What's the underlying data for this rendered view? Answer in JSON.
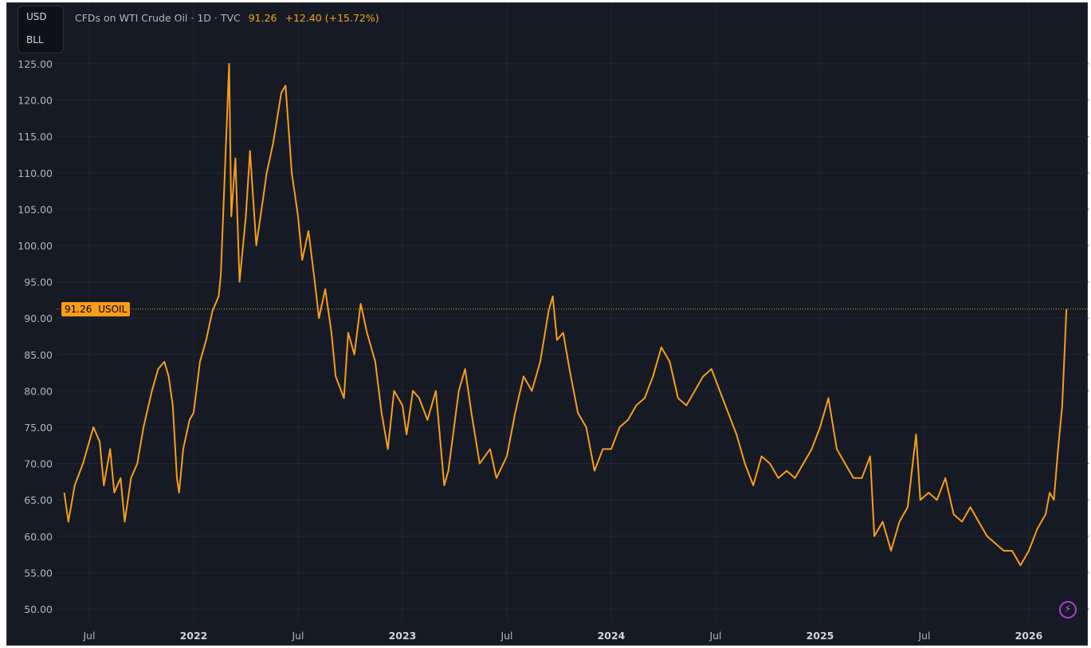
{
  "header": {
    "units": [
      "USD",
      "BLL"
    ],
    "title": "CFDs on WTI Crude Oil · 1D · TVC",
    "last_price": "91.26",
    "change": "+12.40 (+15.72%)"
  },
  "price_tag": {
    "value": "91.26",
    "symbol": "USOIL"
  },
  "icons": {
    "bolt": "lightning-icon"
  },
  "colors": {
    "background": "#161a25",
    "line": "#f89d1b",
    "grid": "#232733",
    "text": "#b2b5be"
  },
  "chart_data": {
    "type": "line",
    "title": "CFDs on WTI Crude Oil · 1D · TVC",
    "xlabel": "",
    "ylabel": "USD",
    "ylim": [
      50,
      125
    ],
    "xlim": [
      2021.35,
      2026.2
    ],
    "y_ticks": [
      "125.00",
      "120.00",
      "115.00",
      "110.00",
      "105.00",
      "100.00",
      "95.00",
      "90.00",
      "85.00",
      "80.00",
      "75.00",
      "70.00",
      "65.00",
      "60.00",
      "55.00",
      "50.00"
    ],
    "x_ticks": [
      {
        "t": 2021.5,
        "label": "Jul"
      },
      {
        "t": 2022.0,
        "label": "2022"
      },
      {
        "t": 2022.5,
        "label": "Jul"
      },
      {
        "t": 2023.0,
        "label": "2023"
      },
      {
        "t": 2023.5,
        "label": "Jul"
      },
      {
        "t": 2024.0,
        "label": "2024"
      },
      {
        "t": 2024.5,
        "label": "Jul"
      },
      {
        "t": 2025.0,
        "label": "2025"
      },
      {
        "t": 2025.5,
        "label": "Jul"
      },
      {
        "t": 2026.0,
        "label": "2026"
      }
    ],
    "grid": true,
    "series": [
      {
        "name": "USOIL",
        "points": [
          [
            2021.38,
            66
          ],
          [
            2021.4,
            62
          ],
          [
            2021.43,
            67
          ],
          [
            2021.47,
            70
          ],
          [
            2021.5,
            73
          ],
          [
            2021.52,
            75
          ],
          [
            2021.55,
            73
          ],
          [
            2021.57,
            67
          ],
          [
            2021.6,
            72
          ],
          [
            2021.62,
            66
          ],
          [
            2021.65,
            68
          ],
          [
            2021.67,
            62
          ],
          [
            2021.7,
            68
          ],
          [
            2021.73,
            70
          ],
          [
            2021.76,
            75
          ],
          [
            2021.8,
            80
          ],
          [
            2021.83,
            83
          ],
          [
            2021.86,
            84
          ],
          [
            2021.88,
            82
          ],
          [
            2021.9,
            78
          ],
          [
            2021.92,
            68
          ],
          [
            2021.93,
            66
          ],
          [
            2021.95,
            72
          ],
          [
            2021.98,
            76
          ],
          [
            2022.0,
            77
          ],
          [
            2022.03,
            84
          ],
          [
            2022.06,
            87
          ],
          [
            2022.09,
            91
          ],
          [
            2022.12,
            93
          ],
          [
            2022.13,
            96
          ],
          [
            2022.17,
            125
          ],
          [
            2022.18,
            104
          ],
          [
            2022.2,
            112
          ],
          [
            2022.22,
            95
          ],
          [
            2022.25,
            104
          ],
          [
            2022.27,
            113
          ],
          [
            2022.3,
            100
          ],
          [
            2022.33,
            106
          ],
          [
            2022.35,
            110
          ],
          [
            2022.38,
            114
          ],
          [
            2022.42,
            121
          ],
          [
            2022.44,
            122
          ],
          [
            2022.47,
            110
          ],
          [
            2022.5,
            104
          ],
          [
            2022.52,
            98
          ],
          [
            2022.55,
            102
          ],
          [
            2022.58,
            95
          ],
          [
            2022.6,
            90
          ],
          [
            2022.63,
            94
          ],
          [
            2022.66,
            88
          ],
          [
            2022.68,
            82
          ],
          [
            2022.72,
            79
          ],
          [
            2022.74,
            88
          ],
          [
            2022.77,
            85
          ],
          [
            2022.8,
            92
          ],
          [
            2022.83,
            88
          ],
          [
            2022.87,
            84
          ],
          [
            2022.9,
            77
          ],
          [
            2022.93,
            72
          ],
          [
            2022.96,
            80
          ],
          [
            2023.0,
            78
          ],
          [
            2023.02,
            74
          ],
          [
            2023.05,
            80
          ],
          [
            2023.08,
            79
          ],
          [
            2023.12,
            76
          ],
          [
            2023.16,
            80
          ],
          [
            2023.2,
            67
          ],
          [
            2023.22,
            69
          ],
          [
            2023.27,
            80
          ],
          [
            2023.3,
            83
          ],
          [
            2023.33,
            77
          ],
          [
            2023.37,
            70
          ],
          [
            2023.42,
            72
          ],
          [
            2023.45,
            68
          ],
          [
            2023.5,
            71
          ],
          [
            2023.54,
            77
          ],
          [
            2023.58,
            82
          ],
          [
            2023.62,
            80
          ],
          [
            2023.66,
            84
          ],
          [
            2023.7,
            91
          ],
          [
            2023.72,
            93
          ],
          [
            2023.74,
            87
          ],
          [
            2023.77,
            88
          ],
          [
            2023.8,
            83
          ],
          [
            2023.84,
            77
          ],
          [
            2023.88,
            75
          ],
          [
            2023.92,
            69
          ],
          [
            2023.96,
            72
          ],
          [
            2024.0,
            72
          ],
          [
            2024.04,
            75
          ],
          [
            2024.08,
            76
          ],
          [
            2024.12,
            78
          ],
          [
            2024.16,
            79
          ],
          [
            2024.2,
            82
          ],
          [
            2024.24,
            86
          ],
          [
            2024.28,
            84
          ],
          [
            2024.32,
            79
          ],
          [
            2024.36,
            78
          ],
          [
            2024.4,
            80
          ],
          [
            2024.44,
            82
          ],
          [
            2024.48,
            83
          ],
          [
            2024.52,
            80
          ],
          [
            2024.56,
            77
          ],
          [
            2024.6,
            74
          ],
          [
            2024.64,
            70
          ],
          [
            2024.68,
            67
          ],
          [
            2024.72,
            71
          ],
          [
            2024.76,
            70
          ],
          [
            2024.8,
            68
          ],
          [
            2024.84,
            69
          ],
          [
            2024.88,
            68
          ],
          [
            2024.92,
            70
          ],
          [
            2024.96,
            72
          ],
          [
            2025.0,
            75
          ],
          [
            2025.04,
            79
          ],
          [
            2025.08,
            72
          ],
          [
            2025.12,
            70
          ],
          [
            2025.16,
            68
          ],
          [
            2025.2,
            68
          ],
          [
            2025.24,
            71
          ],
          [
            2025.26,
            60
          ],
          [
            2025.3,
            62
          ],
          [
            2025.34,
            58
          ],
          [
            2025.38,
            62
          ],
          [
            2025.42,
            64
          ],
          [
            2025.46,
            74
          ],
          [
            2025.48,
            65
          ],
          [
            2025.52,
            66
          ],
          [
            2025.56,
            65
          ],
          [
            2025.6,
            68
          ],
          [
            2025.64,
            63
          ],
          [
            2025.68,
            62
          ],
          [
            2025.72,
            64
          ],
          [
            2025.76,
            62
          ],
          [
            2025.8,
            60
          ],
          [
            2025.84,
            59
          ],
          [
            2025.88,
            58
          ],
          [
            2025.92,
            58
          ],
          [
            2025.96,
            56
          ],
          [
            2026.0,
            58
          ],
          [
            2026.04,
            61
          ],
          [
            2026.08,
            63
          ],
          [
            2026.1,
            66
          ],
          [
            2026.12,
            65
          ],
          [
            2026.14,
            72
          ],
          [
            2026.16,
            78
          ],
          [
            2026.18,
            91.26
          ]
        ]
      }
    ]
  }
}
